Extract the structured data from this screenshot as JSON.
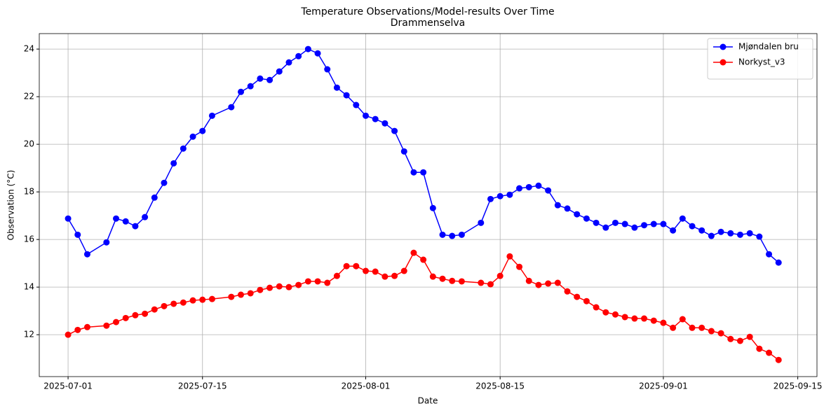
{
  "chart_data": {
    "type": "line",
    "title": "Temperature Observations/Model-results Over Time",
    "subtitle": "Drammenselva",
    "xlabel": "Date",
    "ylabel": "Observation (°C)",
    "x": [
      "2025-07-01",
      "2025-07-02",
      "2025-07-03",
      "2025-07-05",
      "2025-07-06",
      "2025-07-07",
      "2025-07-08",
      "2025-07-09",
      "2025-07-10",
      "2025-07-11",
      "2025-07-12",
      "2025-07-13",
      "2025-07-14",
      "2025-07-15",
      "2025-07-16",
      "2025-07-18",
      "2025-07-19",
      "2025-07-20",
      "2025-07-21",
      "2025-07-22",
      "2025-07-23",
      "2025-07-24",
      "2025-07-25",
      "2025-07-26",
      "2025-07-27",
      "2025-07-28",
      "2025-07-29",
      "2025-07-30",
      "2025-07-31",
      "2025-08-01",
      "2025-08-02",
      "2025-08-03",
      "2025-08-04",
      "2025-08-05",
      "2025-08-06",
      "2025-08-07",
      "2025-08-08",
      "2025-08-09",
      "2025-08-10",
      "2025-08-11",
      "2025-08-13",
      "2025-08-14",
      "2025-08-15",
      "2025-08-16",
      "2025-08-17",
      "2025-08-18",
      "2025-08-19",
      "2025-08-20",
      "2025-08-21",
      "2025-08-22",
      "2025-08-23",
      "2025-08-24",
      "2025-08-25",
      "2025-08-26",
      "2025-08-27",
      "2025-08-28",
      "2025-08-29",
      "2025-08-30",
      "2025-08-31",
      "2025-09-01",
      "2025-09-02",
      "2025-09-03",
      "2025-09-04",
      "2025-09-05",
      "2025-09-06",
      "2025-09-07",
      "2025-09-08",
      "2025-09-09",
      "2025-09-10",
      "2025-09-11",
      "2025-09-12",
      "2025-09-13"
    ],
    "series": [
      {
        "name": "Mjøndalen bru",
        "color": "#0000ff",
        "values": [
          16.88,
          16.2,
          15.38,
          15.88,
          16.88,
          16.76,
          16.56,
          16.94,
          17.76,
          18.38,
          19.2,
          19.82,
          20.32,
          20.56,
          21.2,
          21.56,
          22.2,
          22.44,
          22.76,
          22.7,
          23.06,
          23.44,
          23.7,
          24.0,
          23.82,
          23.15,
          22.38,
          22.06,
          21.65,
          21.2,
          21.06,
          20.88,
          20.56,
          19.7,
          18.82,
          18.82,
          17.32,
          16.2,
          16.15,
          16.2,
          16.7,
          17.7,
          17.82,
          17.88,
          18.15,
          18.2,
          18.26,
          18.06,
          17.44,
          17.3,
          17.06,
          16.88,
          16.7,
          16.5,
          16.7,
          16.65,
          16.5,
          16.6,
          16.65,
          16.65,
          16.38,
          16.88,
          16.56,
          16.38,
          16.15,
          16.32,
          16.26,
          16.2,
          16.26,
          16.12,
          15.38,
          15.03
        ]
      },
      {
        "name": "Norkyst_v3",
        "color": "#ff0000",
        "values": [
          12.0,
          12.2,
          12.32,
          12.38,
          12.53,
          12.7,
          12.82,
          12.88,
          13.06,
          13.2,
          13.3,
          13.35,
          13.44,
          13.47,
          13.5,
          13.59,
          13.68,
          13.74,
          13.88,
          13.97,
          14.03,
          14.0,
          14.09,
          14.24,
          14.24,
          14.18,
          14.47,
          14.88,
          14.88,
          14.68,
          14.65,
          14.44,
          14.47,
          14.68,
          15.44,
          15.15,
          14.44,
          14.35,
          14.26,
          14.24,
          14.18,
          14.12,
          14.47,
          15.29,
          14.85,
          14.26,
          14.09,
          14.15,
          14.18,
          13.82,
          13.59,
          13.41,
          13.15,
          12.94,
          12.85,
          12.74,
          12.68,
          12.68,
          12.59,
          12.5,
          12.29,
          12.65,
          12.29,
          12.29,
          12.15,
          12.06,
          11.82,
          11.74,
          11.91,
          11.41,
          11.24,
          10.94
        ]
      }
    ],
    "xlim": [
      "2025-06-28",
      "2025-09-17"
    ],
    "xticks": [
      "2025-07-01",
      "2025-07-15",
      "2025-08-01",
      "2025-08-15",
      "2025-09-01",
      "2025-09-15"
    ],
    "ylim": [
      10.24,
      24.65
    ],
    "yticks": [
      12,
      14,
      16,
      18,
      20,
      22,
      24
    ],
    "grid": true,
    "legend": "upper right"
  }
}
